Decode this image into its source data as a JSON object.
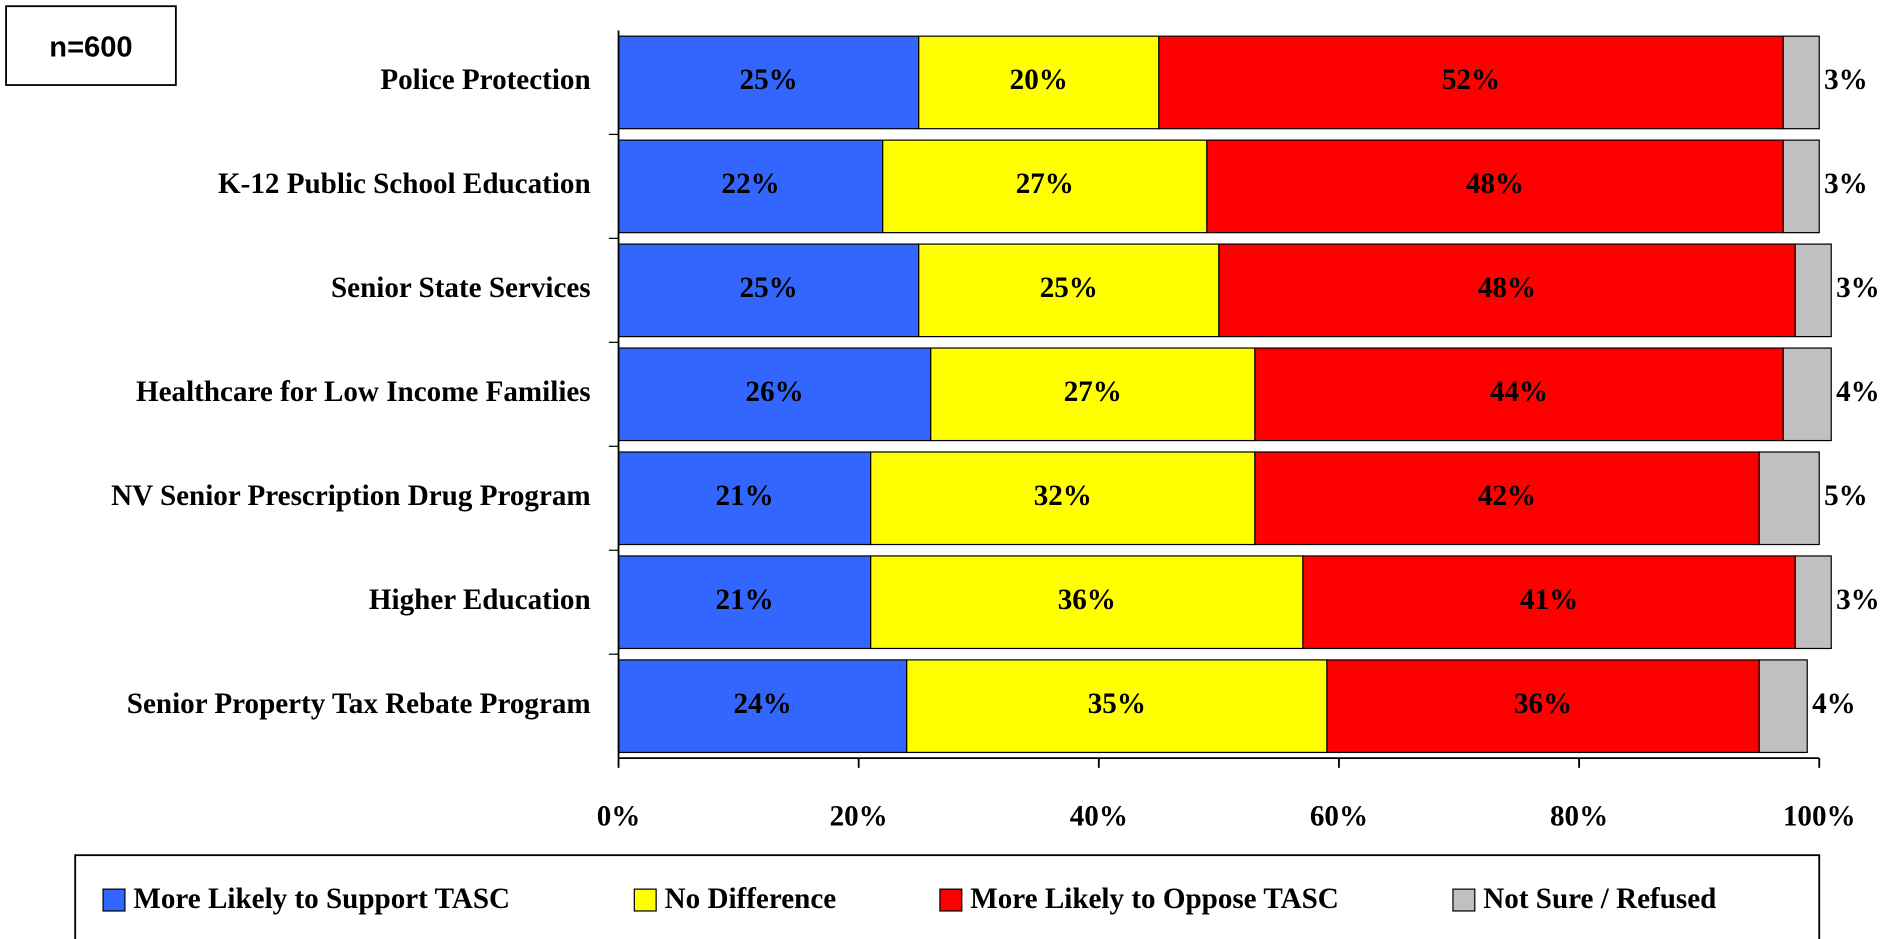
{
  "chart_data": {
    "type": "stacked_hbar",
    "annotation": "n=600",
    "categories": [
      "Police Protection",
      "K-12 Public School Education",
      "Senior State Services",
      "Healthcare for Low Income Families",
      "NV Senior Prescription Drug Program",
      "Higher Education",
      "Senior Property Tax Rebate Program"
    ],
    "series": [
      {
        "name": "More Likely to Support TASC",
        "color": "#3366ff",
        "values": [
          25,
          22,
          25,
          26,
          21,
          21,
          24
        ],
        "value_labels": [
          "25%",
          "22%",
          "25%",
          "26%",
          "21%",
          "21%",
          "24%"
        ]
      },
      {
        "name": "No Difference",
        "color": "#ffff00",
        "values": [
          20,
          27,
          25,
          27,
          32,
          36,
          35
        ],
        "value_labels": [
          "20%",
          "27%",
          "25%",
          "27%",
          "32%",
          "36%",
          "35%"
        ]
      },
      {
        "name": "More Likely to Oppose TASC",
        "color": "#ff0000",
        "values": [
          52,
          48,
          48,
          44,
          42,
          41,
          36
        ],
        "value_labels": [
          "52%",
          "48%",
          "48%",
          "44%",
          "42%",
          "41%",
          "36%"
        ]
      },
      {
        "name": "Not Sure / Refused",
        "color": "#c0c0c0",
        "values": [
          3,
          3,
          3,
          4,
          5,
          3,
          4
        ],
        "value_labels": [
          "3%",
          "3%",
          "3%",
          "4%",
          "5%",
          "3%",
          "4%"
        ]
      }
    ],
    "xlim": [
      0,
      100
    ],
    "xticks": [
      {
        "value": 0,
        "label": "0%"
      },
      {
        "value": 20,
        "label": "20%"
      },
      {
        "value": 40,
        "label": "40%"
      },
      {
        "value": 60,
        "label": "60%"
      },
      {
        "value": 80,
        "label": "80%"
      },
      {
        "value": 100,
        "label": "100%"
      }
    ],
    "legend": "bottom"
  }
}
